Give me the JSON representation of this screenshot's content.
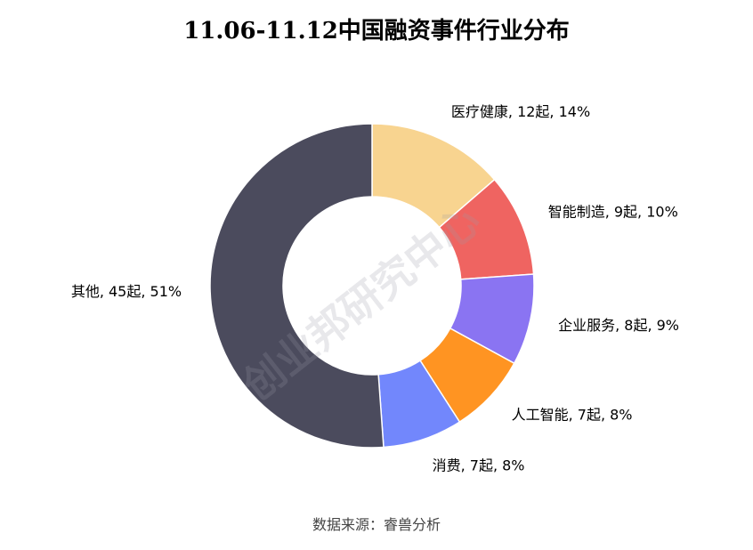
{
  "chart_data": {
    "type": "pie",
    "title": "11.06-11.12中国融资事件行业分布",
    "donut": true,
    "start_angle_deg": 0,
    "direction": "clockwise",
    "slices": [
      {
        "name": "医疗健康",
        "value": 12,
        "unit": "起",
        "percent": "14%",
        "label": "医疗健康, 12起, 14%",
        "color": "#F8D490"
      },
      {
        "name": "智能制造",
        "value": 9,
        "unit": "起",
        "percent": "10%",
        "label": "智能制造, 9起, 10%",
        "color": "#EF6461"
      },
      {
        "name": "企业服务",
        "value": 8,
        "unit": "起",
        "percent": "9%",
        "label": "企业服务, 8起, 9%",
        "color": "#8A74F2"
      },
      {
        "name": "人工智能",
        "value": 7,
        "unit": "起",
        "percent": "8%",
        "label": "人工智能, 7起, 8%",
        "color": "#FF9422"
      },
      {
        "name": "消费",
        "value": 7,
        "unit": "起",
        "percent": "8%",
        "label": "消费, 7起, 8%",
        "color": "#7287FC"
      },
      {
        "name": "其他",
        "value": 45,
        "unit": "起",
        "percent": "51%",
        "label": "其他, 45起, 51%",
        "color": "#4B4B5D"
      }
    ],
    "legend": "none"
  },
  "watermark": "创业邦研究中心",
  "source": "数据来源：睿兽分析"
}
